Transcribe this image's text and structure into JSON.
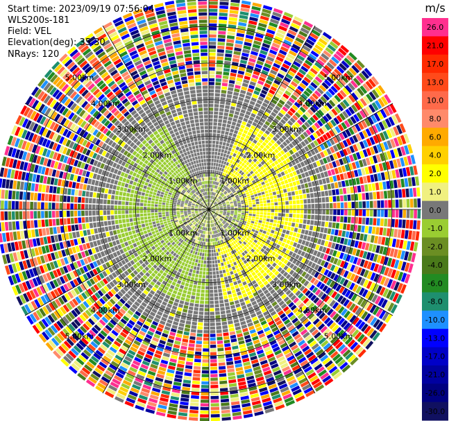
{
  "header": {
    "start_time": "Start time: 2023/09/19 07:56:04",
    "instrument": "WLS200s-181",
    "field": "Field: VEL",
    "elevation": "Elevation(deg): 35.30",
    "nrays": "NRays: 120"
  },
  "chart_data": {
    "type": "heatmap",
    "subtype": "polar-ppi",
    "title": "",
    "field": "VEL",
    "units": "m/s",
    "start_time": "2023/09/19 07:56:04",
    "instrument": "WLS200s-181",
    "elevation_deg": 35.3,
    "n_rays": 120,
    "range_rings_km": [
      1.0,
      2.0,
      3.0,
      4.0,
      5.0
    ],
    "range_ring_labels": [
      "1.00km",
      "2.00km",
      "3.00km",
      "4.00km",
      "5.00km"
    ],
    "max_range_km": 5.8,
    "colorbar": {
      "label": "m/s",
      "ticks": [
        "26.0",
        "21.0",
        "17.0",
        "13.0",
        "10.0",
        "8.0",
        "6.0",
        "4.0",
        "2.0",
        "1.0",
        "0.0",
        "-1.0",
        "-2.0",
        "-4.0",
        "-6.0",
        "-8.0",
        "-10.0",
        "-13.0",
        "-17.0",
        "-21.0",
        "-26.0",
        "-30.0"
      ],
      "colors": [
        "#ff2f8f",
        "#ff0000",
        "#ff2a00",
        "#ff4a1a",
        "#ff6a4a",
        "#ff8a6a",
        "#ffaa00",
        "#ffd000",
        "#ffff00",
        "#f0f080",
        "#787878",
        "#9acd32",
        "#6b8e23",
        "#4a7a1a",
        "#228b22",
        "#1e8f6f",
        "#1e90ff",
        "#0000ff",
        "#0000c8",
        "#0000a0",
        "#000080",
        "#101060"
      ]
    },
    "observed_structure": [
      {
        "range_km": [
          0.0,
          1.0
        ],
        "description": "mixed 0 and -1 m/s near origin"
      },
      {
        "range_km": [
          1.0,
          2.6
        ],
        "sector_deg": [
          20,
          170
        ],
        "value_m_s": 1.5
      },
      {
        "range_km": [
          1.0,
          2.6
        ],
        "sector_deg": [
          180,
          330
        ],
        "value_m_s": -1.5
      },
      {
        "range_km": [
          2.6,
          3.4
        ],
        "value_m_s": 0.0
      },
      {
        "range_km": [
          3.4,
          5.8
        ],
        "description": "noise, all velocity classes"
      }
    ]
  }
}
